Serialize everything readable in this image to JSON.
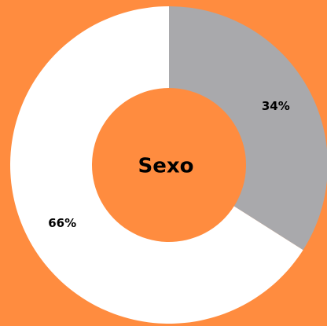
{
  "chart_data": {
    "type": "donut",
    "title": "Sexo",
    "values": [
      34,
      66
    ],
    "value_labels": [
      "34%",
      "66%"
    ],
    "colors": [
      "#a9a9ac",
      "#ffffff"
    ],
    "background": "#ff8c3f"
  }
}
